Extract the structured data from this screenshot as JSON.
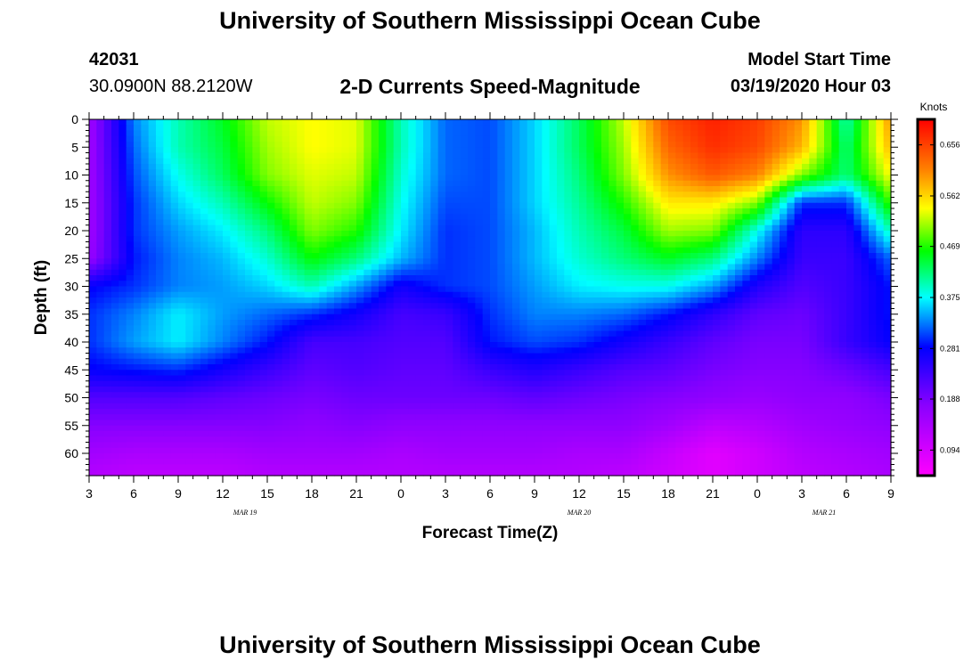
{
  "header": {
    "title_top": "University of Southern Mississippi Ocean Cube",
    "title_bottom": "University of Southern Mississippi Ocean Cube",
    "station_id": "42031",
    "location": "30.0900N 88.2120W",
    "plot_title": "2-D Currents Speed-Magnitude",
    "model_label": "Model Start Time",
    "model_time": "03/19/2020 Hour 03"
  },
  "colors": {
    "ramp": [
      "#ff00ff",
      "#8800ff",
      "#0000ff",
      "#00ffff",
      "#00ff00",
      "#ffff00",
      "#ff8000",
      "#ff0000"
    ],
    "ramp_stops": [
      0.0,
      0.2,
      0.36,
      0.5,
      0.63,
      0.75,
      0.86,
      1.0
    ]
  },
  "chart_data": {
    "type": "heatmap",
    "title": "2-D Currents Speed-Magnitude",
    "xlabel": "Forecast Time(Z)",
    "ylabel": "Depth (ft)",
    "colorbar_units": "Knots",
    "x_tick_labels": [
      "3",
      "6",
      "9",
      "12",
      "15",
      "18",
      "21",
      "0",
      "3",
      "6",
      "9",
      "12",
      "15",
      "18",
      "21",
      "0",
      "3",
      "6",
      "9"
    ],
    "y_ticks": [
      0,
      5,
      10,
      15,
      20,
      25,
      30,
      35,
      40,
      45,
      50,
      55,
      60
    ],
    "ylim": [
      0,
      64
    ],
    "x_range_hours": [
      0,
      54
    ],
    "date_labels": [
      {
        "text": "MAR 19",
        "hour": 10.5
      },
      {
        "text": "MAR 20",
        "hour": 33.0
      },
      {
        "text": "MAR 21",
        "hour": 49.5
      }
    ],
    "colorbar_range": [
      0.047,
      0.703
    ],
    "colorbar_ticks": [
      0.094,
      0.188,
      0.281,
      0.375,
      0.469,
      0.562,
      0.656
    ],
    "depths": [
      0,
      5,
      10,
      15,
      20,
      25,
      30,
      35,
      40,
      45,
      50,
      55,
      60,
      64
    ],
    "hours": [
      0,
      3,
      6,
      9,
      12,
      15,
      18,
      21,
      24,
      27,
      30,
      33,
      36,
      39,
      42,
      45,
      48,
      51,
      54
    ],
    "speed_knots": [
      [
        0.15,
        0.33,
        0.4,
        0.45,
        0.52,
        0.54,
        0.53,
        0.4,
        0.32,
        0.31,
        0.36,
        0.43,
        0.52,
        0.65,
        0.68,
        0.66,
        0.6,
        0.4,
        0.6
      ],
      [
        0.15,
        0.32,
        0.4,
        0.44,
        0.51,
        0.54,
        0.53,
        0.4,
        0.32,
        0.31,
        0.36,
        0.43,
        0.51,
        0.63,
        0.67,
        0.65,
        0.58,
        0.42,
        0.58
      ],
      [
        0.15,
        0.31,
        0.38,
        0.43,
        0.5,
        0.53,
        0.52,
        0.39,
        0.32,
        0.31,
        0.36,
        0.42,
        0.5,
        0.6,
        0.64,
        0.61,
        0.5,
        0.42,
        0.54
      ],
      [
        0.15,
        0.3,
        0.36,
        0.4,
        0.46,
        0.52,
        0.5,
        0.38,
        0.31,
        0.31,
        0.36,
        0.41,
        0.47,
        0.55,
        0.55,
        0.5,
        0.3,
        0.3,
        0.48
      ],
      [
        0.15,
        0.3,
        0.34,
        0.37,
        0.42,
        0.5,
        0.47,
        0.37,
        0.3,
        0.31,
        0.35,
        0.4,
        0.44,
        0.51,
        0.5,
        0.38,
        0.25,
        0.25,
        0.4
      ],
      [
        0.16,
        0.29,
        0.33,
        0.35,
        0.39,
        0.46,
        0.42,
        0.35,
        0.3,
        0.31,
        0.35,
        0.39,
        0.42,
        0.45,
        0.42,
        0.33,
        0.24,
        0.24,
        0.32
      ],
      [
        0.28,
        0.3,
        0.33,
        0.34,
        0.36,
        0.4,
        0.34,
        0.27,
        0.3,
        0.31,
        0.34,
        0.37,
        0.38,
        0.38,
        0.34,
        0.26,
        0.22,
        0.24,
        0.29
      ],
      [
        0.3,
        0.33,
        0.37,
        0.34,
        0.32,
        0.3,
        0.27,
        0.23,
        0.24,
        0.3,
        0.33,
        0.33,
        0.32,
        0.29,
        0.25,
        0.21,
        0.2,
        0.24,
        0.29
      ],
      [
        0.3,
        0.34,
        0.37,
        0.33,
        0.29,
        0.23,
        0.23,
        0.22,
        0.22,
        0.29,
        0.31,
        0.3,
        0.27,
        0.24,
        0.21,
        0.19,
        0.19,
        0.24,
        0.28
      ],
      [
        0.28,
        0.29,
        0.3,
        0.27,
        0.24,
        0.21,
        0.22,
        0.21,
        0.21,
        0.24,
        0.26,
        0.24,
        0.22,
        0.21,
        0.19,
        0.18,
        0.18,
        0.2,
        0.23
      ],
      [
        0.22,
        0.22,
        0.22,
        0.21,
        0.2,
        0.19,
        0.2,
        0.2,
        0.2,
        0.2,
        0.21,
        0.2,
        0.19,
        0.18,
        0.17,
        0.16,
        0.17,
        0.17,
        0.19
      ],
      [
        0.18,
        0.18,
        0.18,
        0.18,
        0.18,
        0.17,
        0.18,
        0.17,
        0.17,
        0.17,
        0.17,
        0.17,
        0.17,
        0.15,
        0.12,
        0.13,
        0.15,
        0.16,
        0.17
      ],
      [
        0.15,
        0.14,
        0.14,
        0.14,
        0.15,
        0.15,
        0.15,
        0.14,
        0.15,
        0.15,
        0.15,
        0.14,
        0.14,
        0.11,
        0.08,
        0.1,
        0.13,
        0.14,
        0.15
      ],
      [
        0.13,
        0.12,
        0.12,
        0.12,
        0.13,
        0.13,
        0.13,
        0.13,
        0.13,
        0.13,
        0.13,
        0.13,
        0.12,
        0.1,
        0.08,
        0.1,
        0.12,
        0.13,
        0.14
      ]
    ]
  }
}
